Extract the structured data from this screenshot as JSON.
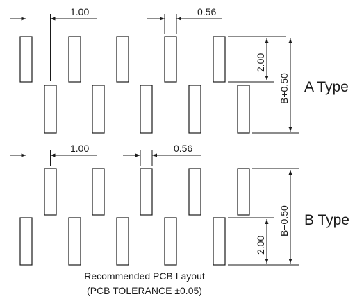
{
  "sections": {
    "a": {
      "type_label": "A Type",
      "pitch_label": "1.00",
      "pad_width_label": "0.56",
      "pad_length_label": "2.00",
      "span_label": "B+0.50"
    },
    "b": {
      "type_label": "B Type",
      "pitch_label": "1.00",
      "pad_width_label": "0.56",
      "pad_length_label": "2.00",
      "span_label": "B+0.50"
    }
  },
  "caption": {
    "line1": "Recommended PCB Layout",
    "line2": "(PCB TOLERANCE ±0.05)"
  }
}
